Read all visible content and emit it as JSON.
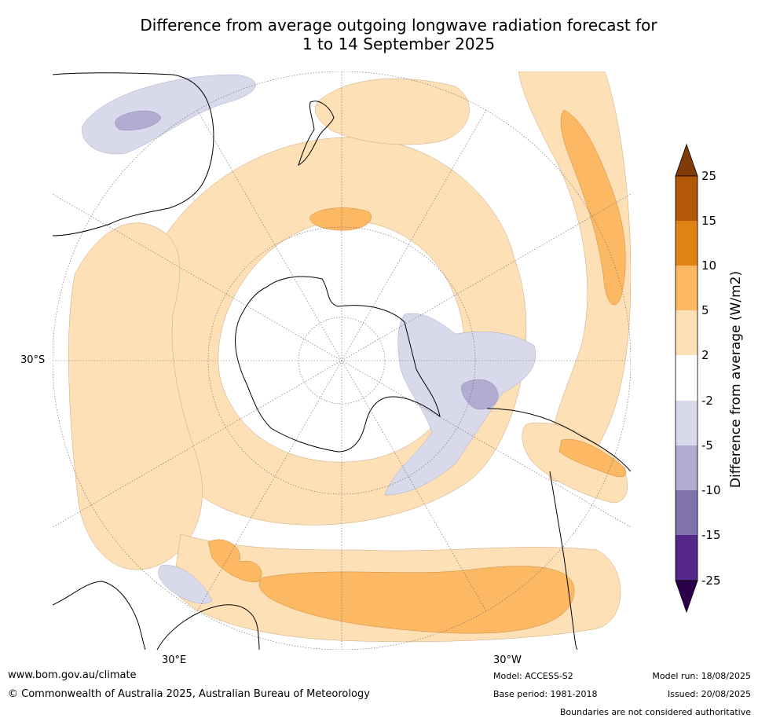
{
  "title": {
    "line1": "Difference from average outgoing longwave radiation forecast for",
    "line2": "1 to 14 September 2025"
  },
  "map": {
    "projection": "south polar stereographic",
    "lat_labels": [
      "30°S"
    ],
    "lon_labels": [
      "30°E",
      "30°W"
    ],
    "legend": {
      "label": "Difference from average (W/m2)",
      "ticks": [
        "25",
        "15",
        "10",
        "5",
        "2",
        "-2",
        "-5",
        "-10",
        "-15",
        "-25"
      ],
      "colors": {
        "over_25": "#7f3b08",
        "15_to_25": "#b35806",
        "10_to_15": "#e08214",
        "5_to_10": "#fdb863",
        "2_to_5": "#fee0b6",
        "-2_to_2": "#ffffff",
        "-5_to_-2": "#d8daeb",
        "-10_to_-5": "#b2abd2",
        "-15_to_-10": "#8073ac",
        "-25_to_-15": "#542788",
        "under_-25": "#2d004b"
      }
    }
  },
  "footer": {
    "website": "www.bom.gov.au/climate",
    "copyright": "© Commonwealth of Australia 2025, Australian Bureau of Meteorology",
    "model": "Model: ACCESS-S2",
    "base_period": "Base period: 1981-2018",
    "model_run": "Model run: 18/08/2025",
    "issued": "Issued: 20/08/2025",
    "disclaimer": "Boundaries are not considered authoritative"
  }
}
